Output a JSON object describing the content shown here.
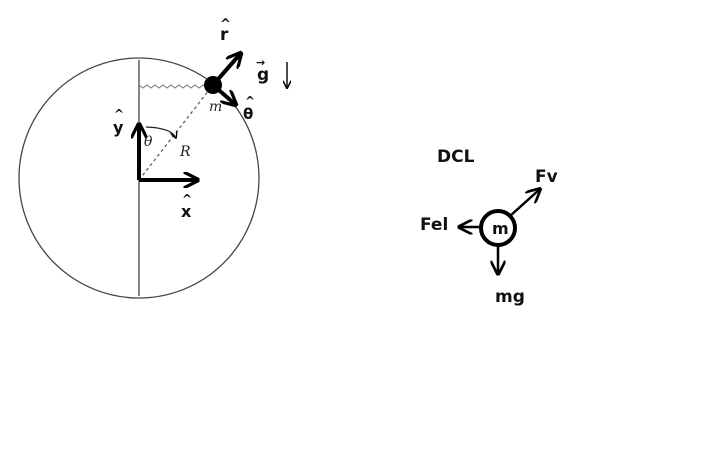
{
  "diagram": {
    "labels": {
      "r_hat": "r",
      "theta_hat": "θ",
      "g_vec": "g",
      "y_hat": "y",
      "x_hat": "x",
      "theta": "θ",
      "radius": "R",
      "mass": "m",
      "hat_mark": "^",
      "vec_mark": "→"
    }
  },
  "dcl": {
    "title": "DCL",
    "mass_label": "m",
    "force_fv": "Fv",
    "force_fel": "Fel",
    "force_mg": "mg"
  }
}
